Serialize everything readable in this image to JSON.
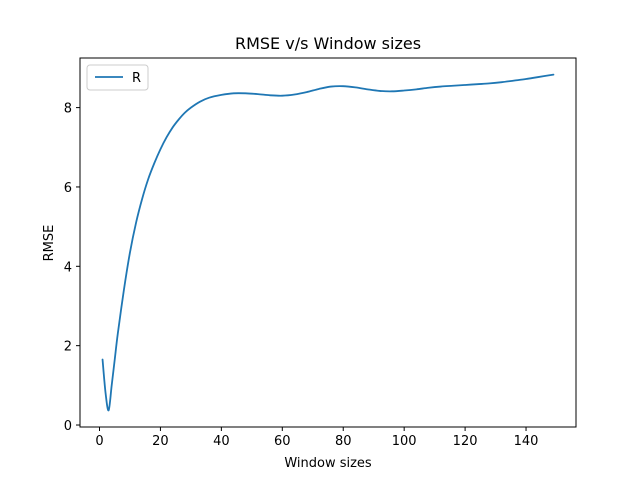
{
  "chart_data": {
    "type": "line",
    "title": "RMSE v/s Window sizes",
    "xlabel": "Window sizes",
    "ylabel": "RMSE",
    "xlim": [
      -6.4,
      156.4
    ],
    "ylim": [
      -0.05,
      9.25
    ],
    "xticks": [
      0,
      20,
      40,
      60,
      80,
      100,
      120,
      140
    ],
    "yticks": [
      0,
      2,
      4,
      6,
      8
    ],
    "grid": false,
    "legend": "upper-left",
    "series": [
      {
        "name": "R",
        "color": "#1f77b4",
        "x": [
          1,
          2,
          3,
          4,
          5,
          6,
          8,
          10,
          12,
          14,
          16,
          18,
          20,
          22,
          24,
          26,
          28,
          30,
          33,
          36,
          40,
          44,
          48,
          52,
          56,
          60,
          64,
          68,
          72,
          76,
          80,
          84,
          88,
          92,
          96,
          100,
          104,
          108,
          112,
          116,
          120,
          124,
          128,
          132,
          136,
          140,
          144,
          149
        ],
        "values": [
          1.65,
          0.8,
          0.37,
          1.0,
          1.65,
          2.3,
          3.4,
          4.35,
          5.1,
          5.7,
          6.2,
          6.6,
          6.95,
          7.25,
          7.5,
          7.7,
          7.87,
          8.0,
          8.15,
          8.25,
          8.32,
          8.36,
          8.36,
          8.34,
          8.31,
          8.3,
          8.33,
          8.39,
          8.47,
          8.53,
          8.54,
          8.51,
          8.46,
          8.42,
          8.41,
          8.43,
          8.46,
          8.5,
          8.53,
          8.55,
          8.57,
          8.59,
          8.61,
          8.64,
          8.68,
          8.72,
          8.77,
          8.83
        ]
      }
    ]
  }
}
